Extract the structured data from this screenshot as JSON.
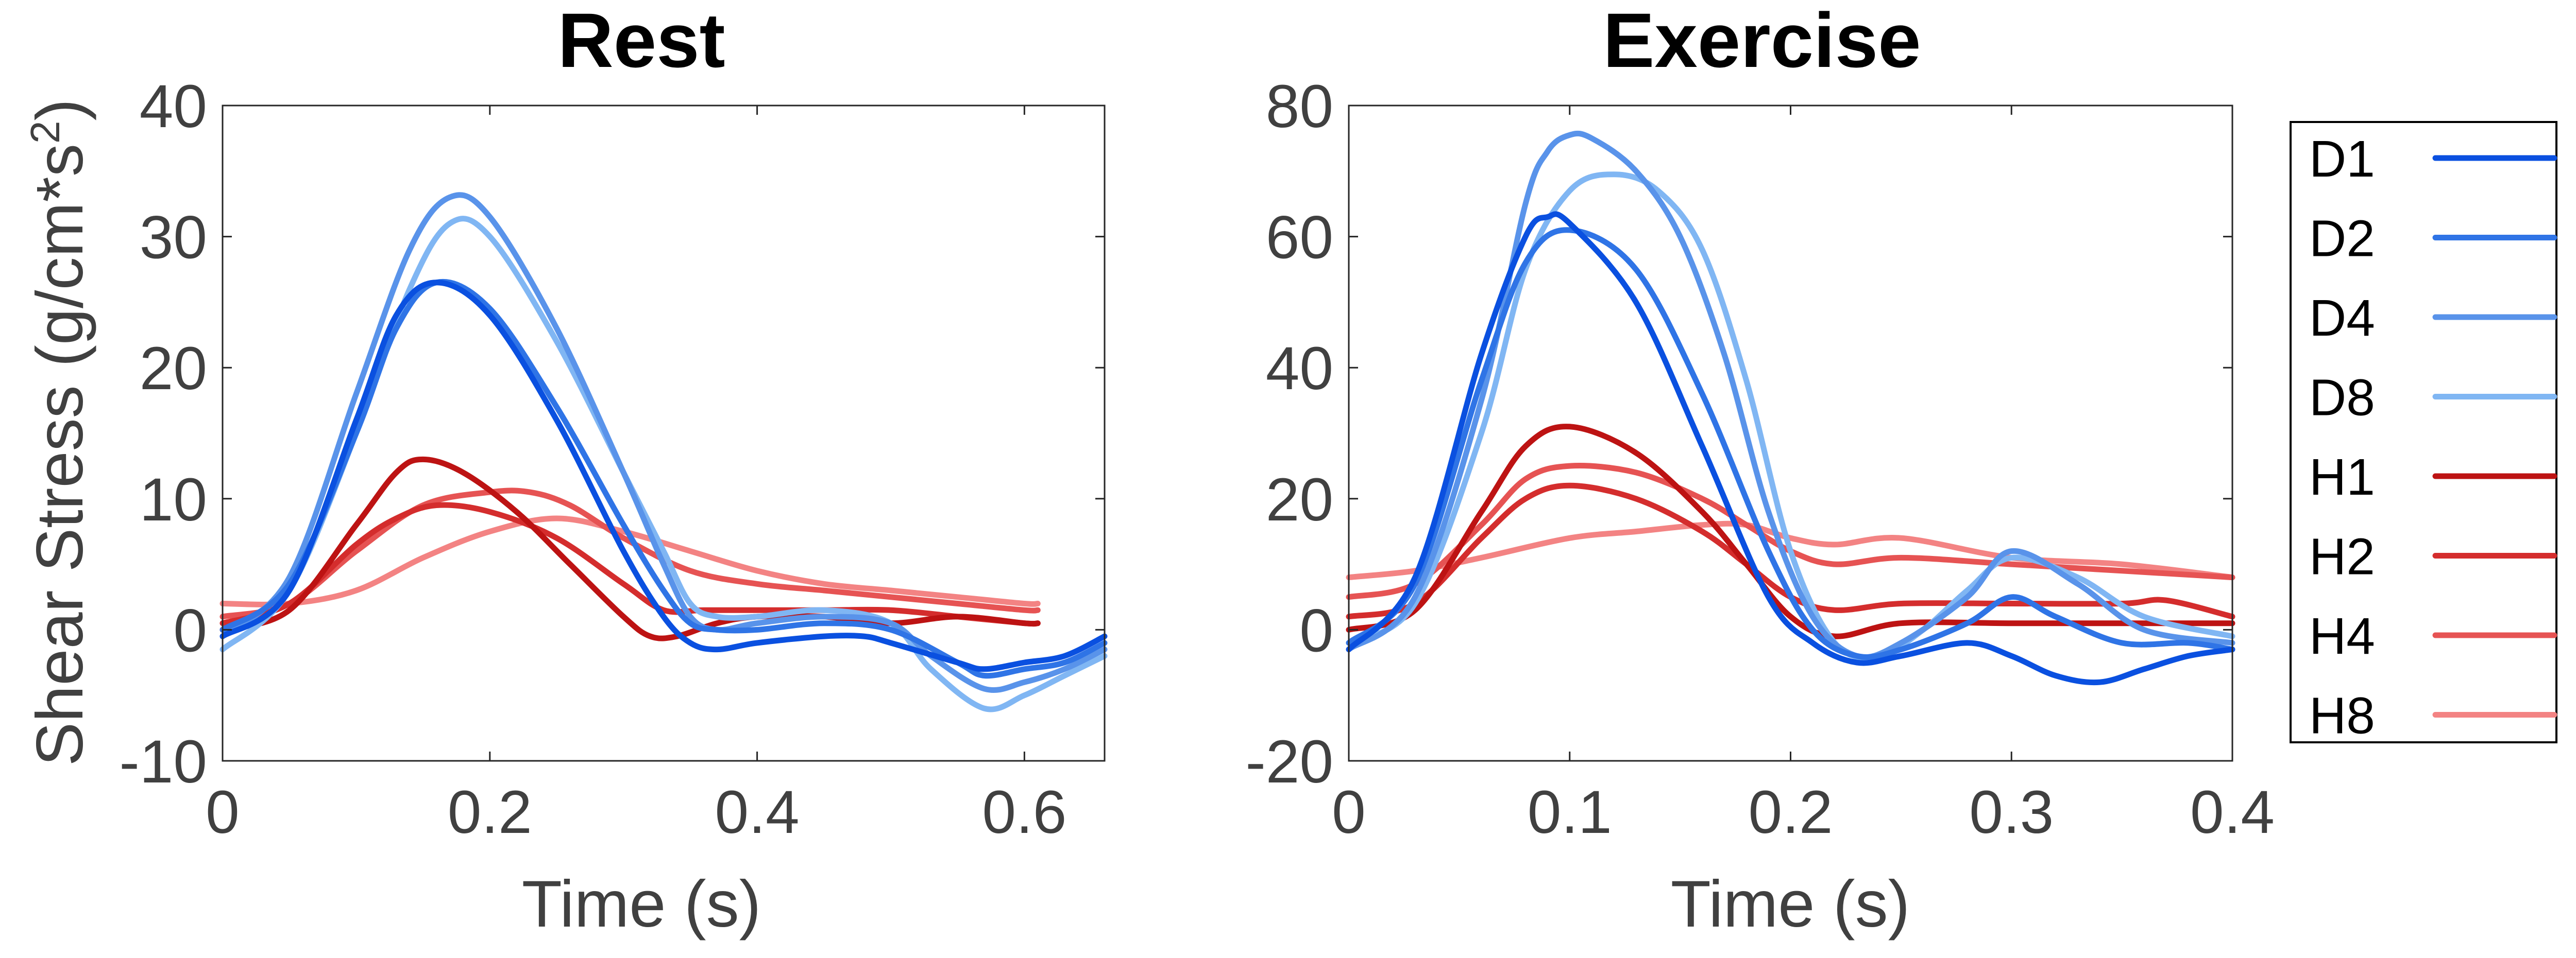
{
  "chart_data": [
    {
      "id": "rest",
      "type": "line",
      "title": "Rest",
      "xlabel": "Time (s)",
      "ylabel": "Shear Stress (g/cm*s",
      "ylabel_sup": "2",
      "ylabel_close": ")",
      "xlim": [
        0,
        0.66
      ],
      "ylim": [
        -10,
        40
      ],
      "xticks": [
        0,
        0.2,
        0.4,
        0.6
      ],
      "xtick_labels": [
        "0",
        "0.2",
        "0.4",
        "0.6"
      ],
      "yticks": [
        -10,
        0,
        10,
        20,
        30,
        40
      ],
      "ytick_labels": [
        "-10",
        "0",
        "10",
        "20",
        "30",
        "40"
      ],
      "grid": false,
      "series": [
        {
          "name": "D1",
          "x": [
            0,
            0.05,
            0.1,
            0.13,
            0.16,
            0.2,
            0.25,
            0.3,
            0.33,
            0.35,
            0.37,
            0.4,
            0.45,
            0.48,
            0.5,
            0.55,
            0.57,
            0.6,
            0.63,
            0.66
          ],
          "y": [
            -0.5,
            3,
            16,
            24,
            26.5,
            24,
            16,
            6,
            1,
            -1,
            -1.5,
            -1,
            -0.5,
            -0.5,
            -1,
            -2.5,
            -3,
            -2.5,
            -2,
            -0.5
          ]
        },
        {
          "name": "D2",
          "x": [
            0,
            0.05,
            0.1,
            0.13,
            0.16,
            0.2,
            0.25,
            0.3,
            0.33,
            0.35,
            0.37,
            0.4,
            0.45,
            0.5,
            0.55,
            0.57,
            0.6,
            0.63,
            0.66
          ],
          "y": [
            0,
            3.5,
            15,
            23,
            26.5,
            24.5,
            17,
            8,
            3,
            0.5,
            0,
            0,
            0.5,
            0,
            -2.5,
            -3.5,
            -3,
            -2.5,
            -1
          ]
        },
        {
          "name": "D4",
          "x": [
            0,
            0.05,
            0.1,
            0.14,
            0.17,
            0.2,
            0.25,
            0.3,
            0.33,
            0.35,
            0.37,
            0.4,
            0.45,
            0.5,
            0.53,
            0.57,
            0.6,
            0.63,
            0.66
          ],
          "y": [
            -0.5,
            4,
            18,
            29,
            33,
            31.5,
            23,
            12,
            5,
            1,
            0,
            0.5,
            1,
            0.5,
            -2,
            -4.5,
            -4,
            -3,
            -1.5
          ]
        },
        {
          "name": "D8",
          "x": [
            0,
            0.05,
            0.1,
            0.14,
            0.17,
            0.2,
            0.25,
            0.3,
            0.33,
            0.35,
            0.37,
            0.4,
            0.45,
            0.5,
            0.53,
            0.57,
            0.6,
            0.63,
            0.66
          ],
          "y": [
            -1.5,
            3,
            15,
            26,
            31,
            30,
            22,
            12,
            6,
            2,
            1,
            1,
            1.5,
            0.5,
            -3,
            -6,
            -5,
            -3.5,
            -2
          ]
        },
        {
          "name": "H1",
          "x": [
            0,
            0.05,
            0.1,
            0.13,
            0.15,
            0.18,
            0.22,
            0.26,
            0.3,
            0.32,
            0.34,
            0.37,
            0.4,
            0.45,
            0.5,
            0.55,
            0.6,
            0.61
          ],
          "y": [
            0,
            1.5,
            8,
            12,
            13,
            12,
            9,
            5,
            1,
            -0.5,
            -0.5,
            0.5,
            1,
            1,
            0.5,
            1,
            0.5,
            0.5
          ]
        },
        {
          "name": "H2",
          "x": [
            0,
            0.05,
            0.1,
            0.13,
            0.16,
            0.2,
            0.25,
            0.3,
            0.33,
            0.36,
            0.4,
            0.45,
            0.5,
            0.55,
            0.6,
            0.61
          ],
          "y": [
            0.5,
            2,
            6.5,
            8.5,
            9.5,
            9,
            7,
            3.5,
            1.5,
            1.5,
            1.5,
            1.5,
            1.5,
            1,
            0.5,
            0.5
          ]
        },
        {
          "name": "H4",
          "x": [
            0,
            0.05,
            0.1,
            0.15,
            0.2,
            0.23,
            0.26,
            0.3,
            0.35,
            0.4,
            0.45,
            0.5,
            0.55,
            0.6,
            0.61
          ],
          "y": [
            1,
            2,
            6,
            9.5,
            10.5,
            10.5,
            9.5,
            7,
            4.5,
            3.5,
            3,
            2.5,
            2,
            1.5,
            1.5
          ]
        },
        {
          "name": "H8",
          "x": [
            0,
            0.05,
            0.1,
            0.15,
            0.2,
            0.25,
            0.3,
            0.35,
            0.4,
            0.45,
            0.5,
            0.55,
            0.6,
            0.61
          ],
          "y": [
            2,
            2,
            3,
            5.5,
            7.5,
            8.5,
            7.5,
            6,
            4.5,
            3.5,
            3,
            2.5,
            2,
            2
          ]
        }
      ]
    },
    {
      "id": "exercise",
      "type": "line",
      "title": "Exercise",
      "xlabel": "Time (s)",
      "ylabel": "",
      "xlim": [
        0,
        0.4
      ],
      "ylim": [
        -20,
        80
      ],
      "xticks": [
        0,
        0.1,
        0.2,
        0.3,
        0.4
      ],
      "xtick_labels": [
        "0",
        "0.1",
        "0.2",
        "0.3",
        "0.4"
      ],
      "yticks": [
        -20,
        0,
        20,
        40,
        60,
        80
      ],
      "ytick_labels": [
        "-20",
        "0",
        "20",
        "40",
        "60",
        "80"
      ],
      "grid": false,
      "series": [
        {
          "name": "D1",
          "x": [
            0,
            0.03,
            0.06,
            0.08,
            0.09,
            0.1,
            0.13,
            0.16,
            0.19,
            0.21,
            0.23,
            0.25,
            0.28,
            0.3,
            0.32,
            0.34,
            0.36,
            0.38,
            0.4
          ],
          "y": [
            -3,
            8,
            42,
            60,
            63,
            62,
            50,
            28,
            5,
            -2,
            -5,
            -4,
            -2,
            -4,
            -7,
            -8,
            -6,
            -4,
            -3
          ]
        },
        {
          "name": "D2",
          "x": [
            0,
            0.03,
            0.06,
            0.08,
            0.1,
            0.13,
            0.16,
            0.19,
            0.21,
            0.23,
            0.25,
            0.28,
            0.3,
            0.32,
            0.35,
            0.38,
            0.4
          ],
          "y": [
            -2,
            7,
            38,
            56,
            61,
            55,
            36,
            12,
            0,
            -4,
            -3,
            1,
            5,
            2,
            -2,
            -2,
            -3
          ]
        },
        {
          "name": "D4",
          "x": [
            0,
            0.03,
            0.06,
            0.08,
            0.09,
            0.1,
            0.11,
            0.13,
            0.15,
            0.17,
            0.19,
            0.21,
            0.23,
            0.25,
            0.28,
            0.3,
            0.33,
            0.36,
            0.4
          ],
          "y": [
            -3,
            5,
            35,
            65,
            73,
            75.5,
            75,
            70,
            60,
            42,
            18,
            2,
            -4,
            -2,
            5,
            12,
            7,
            0,
            -2
          ]
        },
        {
          "name": "D8",
          "x": [
            0,
            0.03,
            0.06,
            0.08,
            0.1,
            0.12,
            0.14,
            0.16,
            0.18,
            0.2,
            0.22,
            0.24,
            0.26,
            0.28,
            0.3,
            0.33,
            0.36,
            0.4
          ],
          "y": [
            -2,
            4,
            30,
            55,
            67,
            69.5,
            67,
            58,
            38,
            12,
            -2,
            -4,
            0,
            6,
            11,
            8,
            2,
            -1
          ]
        },
        {
          "name": "H1",
          "x": [
            0,
            0.03,
            0.06,
            0.08,
            0.1,
            0.13,
            0.16,
            0.18,
            0.2,
            0.22,
            0.25,
            0.3,
            0.35,
            0.4
          ],
          "y": [
            0,
            3,
            18,
            28,
            31,
            27,
            18,
            10,
            2,
            -1,
            1,
            1,
            1,
            1
          ]
        },
        {
          "name": "H2",
          "x": [
            0,
            0.03,
            0.06,
            0.08,
            0.1,
            0.13,
            0.16,
            0.18,
            0.2,
            0.22,
            0.25,
            0.3,
            0.35,
            0.37,
            0.4
          ],
          "y": [
            2,
            4,
            14,
            20,
            22,
            20,
            15,
            10,
            5,
            3,
            4,
            4,
            4,
            4.5,
            2
          ]
        },
        {
          "name": "H4",
          "x": [
            0,
            0.03,
            0.06,
            0.08,
            0.1,
            0.13,
            0.16,
            0.18,
            0.2,
            0.22,
            0.25,
            0.3,
            0.35,
            0.4
          ],
          "y": [
            5,
            7,
            16,
            23,
            25,
            24,
            20,
            16,
            12,
            10,
            11,
            10,
            9,
            8
          ]
        },
        {
          "name": "H8",
          "x": [
            0,
            0.03,
            0.06,
            0.1,
            0.13,
            0.16,
            0.18,
            0.2,
            0.22,
            0.25,
            0.3,
            0.35,
            0.4
          ],
          "y": [
            8,
            9,
            11,
            14,
            15,
            16,
            16,
            14,
            13,
            14,
            11,
            10,
            8
          ]
        }
      ]
    }
  ],
  "legend": {
    "position": "right",
    "entries": [
      {
        "name": "D1",
        "color": "#0a50e0"
      },
      {
        "name": "D2",
        "color": "#2f74e6"
      },
      {
        "name": "D4",
        "color": "#5993ea"
      },
      {
        "name": "D8",
        "color": "#80b6f3"
      },
      {
        "name": "H1",
        "color": "#bd1313"
      },
      {
        "name": "H2",
        "color": "#d42d2d"
      },
      {
        "name": "H4",
        "color": "#e65353"
      },
      {
        "name": "H8",
        "color": "#f38383"
      }
    ]
  }
}
